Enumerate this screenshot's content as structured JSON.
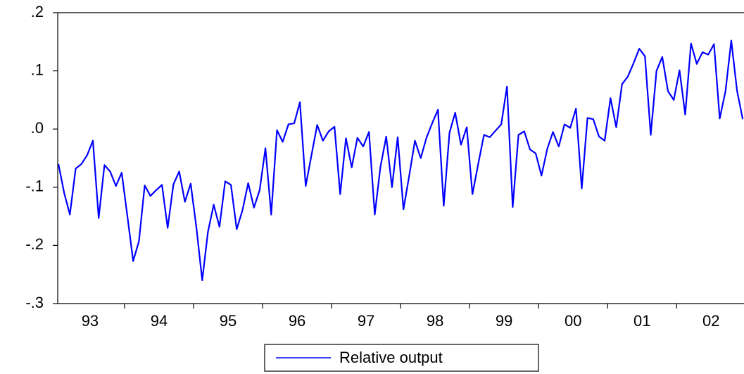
{
  "chart_data": {
    "type": "line",
    "categories": [
      null,
      null,
      null,
      null,
      null,
      null,
      "93",
      null,
      null,
      null,
      null,
      null,
      null,
      null,
      null,
      null,
      null,
      null,
      "94",
      null,
      null,
      null,
      null,
      null,
      null,
      null,
      null,
      null,
      null,
      null,
      "95",
      null,
      null,
      null,
      null,
      null,
      null,
      null,
      null,
      null,
      null,
      null,
      "96",
      null,
      null,
      null,
      null,
      null,
      null,
      null,
      null,
      null,
      null,
      null,
      "97",
      null,
      null,
      null,
      null,
      null,
      null,
      null,
      null,
      null,
      null,
      null,
      "98",
      null,
      null,
      null,
      null,
      null,
      null,
      null,
      null,
      null,
      null,
      null,
      "99",
      null,
      null,
      null,
      null,
      null,
      null,
      null,
      null,
      null,
      null,
      null,
      "00",
      null,
      null,
      null,
      null,
      null,
      null,
      null,
      null,
      null,
      null,
      null,
      "01",
      null,
      null,
      null,
      null,
      null,
      null,
      null,
      null,
      null,
      null,
      null,
      "02",
      null,
      null,
      null,
      null,
      null
    ],
    "series": [
      {
        "name": "Relative output",
        "color": "#0000ff",
        "values": [
          -0.06,
          -0.11,
          -0.147,
          -0.068,
          -0.06,
          -0.045,
          -0.02,
          -0.153,
          -0.062,
          -0.073,
          -0.098,
          -0.075,
          -0.15,
          -0.227,
          -0.193,
          -0.097,
          -0.115,
          -0.105,
          -0.096,
          -0.17,
          -0.095,
          -0.073,
          -0.125,
          -0.094,
          -0.17,
          -0.26,
          -0.177,
          -0.13,
          -0.168,
          -0.09,
          -0.096,
          -0.172,
          -0.14,
          -0.093,
          -0.135,
          -0.105,
          -0.033,
          -0.147,
          -0.002,
          -0.022,
          0.008,
          0.01,
          0.046,
          -0.098,
          -0.045,
          0.007,
          -0.02,
          -0.004,
          0.004,
          -0.112,
          -0.016,
          -0.066,
          -0.015,
          -0.03,
          -0.005,
          -0.147,
          -0.065,
          -0.013,
          -0.1,
          -0.014,
          -0.138,
          -0.08,
          -0.02,
          -0.05,
          -0.015,
          0.01,
          0.033,
          -0.132,
          -0.006,
          0.028,
          -0.027,
          0.003,
          -0.112,
          -0.06,
          -0.01,
          -0.014,
          -0.003,
          0.008,
          0.073,
          -0.134,
          -0.01,
          -0.004,
          -0.035,
          -0.042,
          -0.08,
          -0.034,
          -0.005,
          -0.03,
          0.008,
          0.002,
          0.035,
          -0.102,
          0.019,
          0.017,
          -0.013,
          -0.02,
          0.053,
          0.003,
          0.077,
          0.09,
          0.113,
          0.138,
          0.125,
          -0.01,
          0.1,
          0.124,
          0.065,
          0.05,
          0.101,
          0.025,
          0.147,
          0.112,
          0.132,
          0.128,
          0.146,
          0.018,
          0.065,
          0.152,
          0.066,
          0.017
        ]
      }
    ],
    "ylim": [
      -0.3,
      0.2
    ],
    "yticks": [
      {
        "value": -0.3,
        "label": "-.3"
      },
      {
        "value": -0.2,
        "label": "-.2"
      },
      {
        "value": -0.1,
        "label": "-.1"
      },
      {
        "value": 0,
        "label": ".0"
      },
      {
        "value": 0.1,
        "label": ".1"
      },
      {
        "value": 0.2,
        "label": ".2"
      }
    ],
    "legend": "bottom"
  }
}
